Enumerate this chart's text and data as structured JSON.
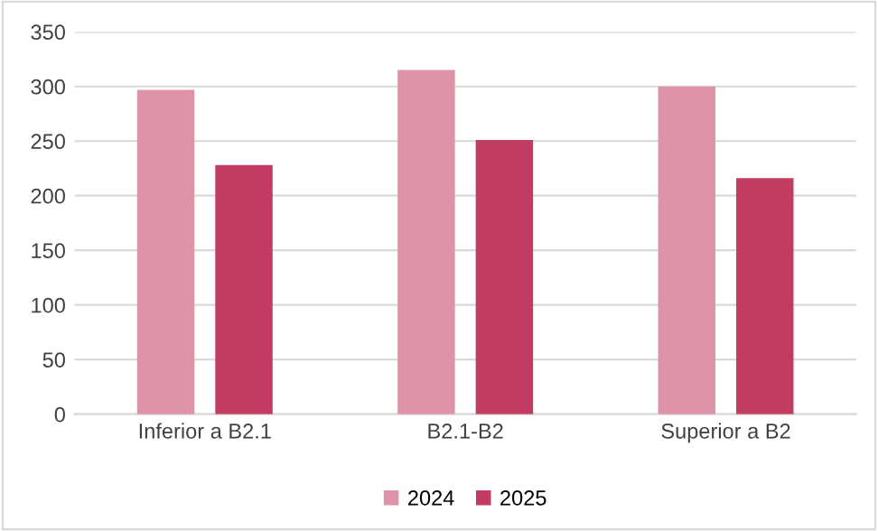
{
  "chart_data": {
    "type": "bar",
    "categories": [
      "Inferior a B2.1",
      "B2.1-B2",
      "Superior a B2"
    ],
    "series": [
      {
        "name": "2024",
        "color": "#de93a8",
        "values": [
          297,
          315,
          300
        ]
      },
      {
        "name": "2025",
        "color": "#c23b62",
        "values": [
          228,
          251,
          216
        ]
      }
    ],
    "ylim": [
      0,
      350
    ],
    "yticks": [
      0,
      50,
      100,
      150,
      200,
      250,
      300,
      350
    ],
    "grid": "y",
    "legend": "bottom"
  }
}
